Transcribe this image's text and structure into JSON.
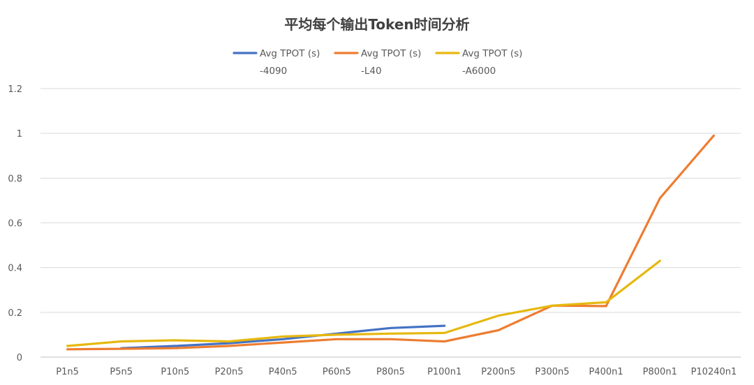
{
  "chart_data": {
    "type": "line",
    "title": "平均每个输出Token时间分析",
    "xlabel": "",
    "ylabel": "",
    "ylim": [
      0,
      1.2
    ],
    "yticks": [
      "0",
      "0.2",
      "0.4",
      "0.6",
      "0.8",
      "1",
      "1.2"
    ],
    "grid": true,
    "legend_position": "top",
    "categories": [
      "P1n5",
      "P5n5",
      "P10n5",
      "P20n5",
      "P40n5",
      "P60n5",
      "P80n5",
      "P100n1",
      "P200n5",
      "P300n5",
      "P400n1",
      "P800n1",
      "P10240n1"
    ],
    "series": [
      {
        "name": "Avg TPOT (s)",
        "name_line2": "-4090",
        "color": "#4472c4",
        "values": [
          null,
          0.04,
          0.05,
          0.062,
          0.08,
          0.105,
          0.13,
          0.14,
          null,
          null,
          null,
          null,
          null
        ]
      },
      {
        "name": "Avg TPOT (s)",
        "name_line2": "-L40",
        "color": "#ed7d31",
        "values": [
          0.035,
          0.037,
          0.04,
          0.05,
          0.065,
          0.08,
          0.08,
          0.07,
          0.12,
          0.23,
          0.228,
          0.71,
          0.99
        ]
      },
      {
        "name": "Avg TPOT (s)",
        "name_line2": "-A6000",
        "color": "#e6b80f",
        "values": [
          0.05,
          0.07,
          0.075,
          0.07,
          0.092,
          0.1,
          0.105,
          0.108,
          0.185,
          0.23,
          0.245,
          0.43,
          null
        ]
      }
    ]
  }
}
